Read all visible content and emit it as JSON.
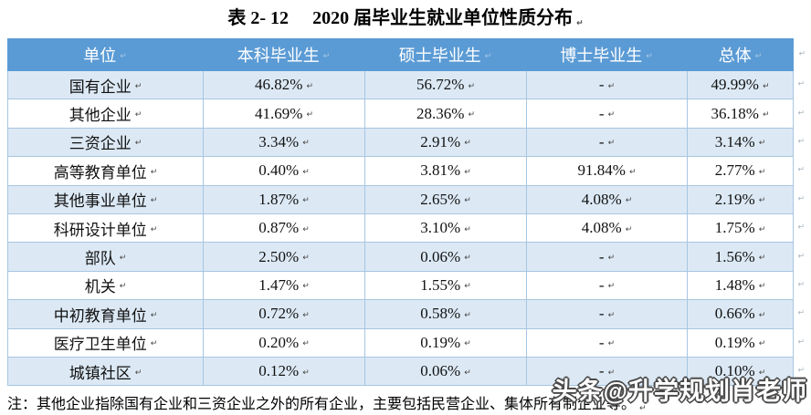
{
  "title": {
    "index": "表 2- 12",
    "text": "2020 届毕业生就业单位性质分布"
  },
  "glyphs": {
    "paragraph_mark": "↵"
  },
  "colors": {
    "header_bg": "#5b9bd5",
    "alt_row_bg": "#dce9f5",
    "border": "#a6c6e2",
    "header_text": "#ffffff",
    "watermark_fill": "#ffffff",
    "watermark_outline": "#4a4a4a"
  },
  "table": {
    "headers": [
      "单位",
      "本科毕业生",
      "硕士毕业生",
      "博士毕业生",
      "总体"
    ],
    "rows": [
      [
        "国有企业",
        "46.82%",
        "56.72%",
        "-",
        "49.99%"
      ],
      [
        "其他企业",
        "41.69%",
        "28.36%",
        "-",
        "36.18%"
      ],
      [
        "三资企业",
        "3.34%",
        "2.91%",
        "-",
        "3.14%"
      ],
      [
        "高等教育单位",
        "0.40%",
        "3.81%",
        "91.84%",
        "2.77%"
      ],
      [
        "其他事业单位",
        "1.87%",
        "2.65%",
        "4.08%",
        "2.19%"
      ],
      [
        "科研设计单位",
        "0.87%",
        "3.10%",
        "4.08%",
        "1.75%"
      ],
      [
        "部队",
        "2.50%",
        "0.06%",
        "-",
        "1.56%"
      ],
      [
        "机关",
        "1.47%",
        "1.55%",
        "-",
        "1.48%"
      ],
      [
        "中初教育单位",
        "0.72%",
        "0.58%",
        "-",
        "0.66%"
      ],
      [
        "医疗卫生单位",
        "0.20%",
        "0.19%",
        "-",
        "0.19%"
      ],
      [
        "城镇社区",
        "0.12%",
        "0.06%",
        "-",
        "0.10%"
      ]
    ]
  },
  "note": "注：其他企业指除国有企业和三资企业之外的所有企业，主要包括民营企业、集体所有制企业等。",
  "watermark": "头条@升学规划肖老师"
}
